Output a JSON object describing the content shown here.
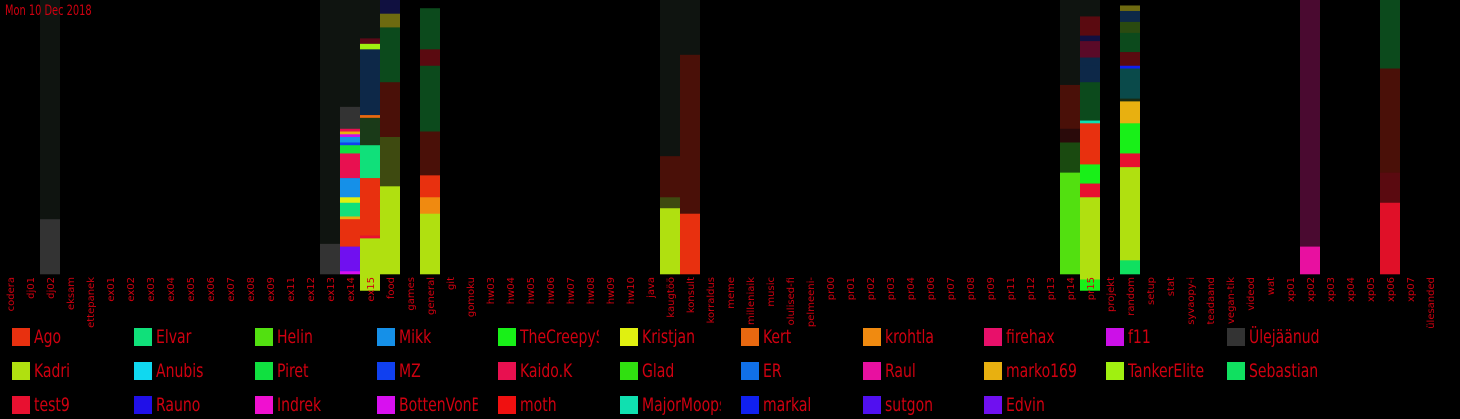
{
  "date": "Mon 10 Dec 2018",
  "chart_data": {
    "type": "bar",
    "stacked": true,
    "y_unit": "fraction of total messages",
    "ylim": [
      0,
      1
    ],
    "background": "#000000",
    "label_color": "#d00010",
    "categories": [
      "codera",
      "dj01",
      "dj02",
      "eksam",
      "ettepanek",
      "ex01",
      "ex02",
      "ex03",
      "ex04",
      "ex05",
      "ex06",
      "ex07",
      "ex08",
      "ex09",
      "ex11",
      "ex12",
      "ex13",
      "ex14",
      "ex15",
      "food",
      "games",
      "general",
      "git",
      "gomoku",
      "hw03",
      "hw04",
      "hw05",
      "hw06",
      "hw07",
      "hw08",
      "hw09",
      "hw10",
      "java",
      "kaugtöö",
      "konsult",
      "korraldus",
      "meme",
      "milleniaik",
      "music",
      "olulised-fi",
      "pelmeeni-",
      "pr00",
      "pr01",
      "pr02",
      "pr03",
      "pr04",
      "pr06",
      "pr07",
      "pr08",
      "pr09",
      "pr11",
      "pr12",
      "pr13",
      "pr14",
      "pr15",
      "projekt",
      "random",
      "setup",
      "stat",
      "syvaopy-i",
      "teadaand",
      "vegan-tik",
      "videod",
      "wat",
      "xp01",
      "xp02",
      "xp03",
      "xp04",
      "xp05",
      "xp06",
      "xp07",
      "ülesanded"
    ],
    "users": [
      {
        "name": "Ago",
        "color": "#e8300f"
      },
      {
        "name": "Elvar",
        "color": "#10e07a"
      },
      {
        "name": "Helin",
        "color": "#52e010"
      },
      {
        "name": "Mikk",
        "color": "#1590e8"
      },
      {
        "name": "TheCreepySh",
        "color": "#18f018"
      },
      {
        "name": "Kristjan",
        "color": "#e0f010"
      },
      {
        "name": "Kert",
        "color": "#e86810"
      },
      {
        "name": "krohtla",
        "color": "#f08a10"
      },
      {
        "name": "firehax",
        "color": "#e8106a"
      },
      {
        "name": "f11",
        "color": "#cc10e8"
      },
      {
        "name": "Ülejäänud",
        "color": "#333333"
      },
      {
        "name": "Kadri",
        "color": "#b0e010"
      },
      {
        "name": "Anubis",
        "color": "#10d8f0"
      },
      {
        "name": "Piret",
        "color": "#10e040"
      },
      {
        "name": "MZ",
        "color": "#1040f0"
      },
      {
        "name": "Kaido.K",
        "color": "#e81050"
      },
      {
        "name": "Glad",
        "color": "#30e010"
      },
      {
        "name": "ER",
        "color": "#1070e8"
      },
      {
        "name": "Raul",
        "color": "#e810a0"
      },
      {
        "name": "marko169",
        "color": "#e8b010"
      },
      {
        "name": "TankerElite",
        "color": "#a0f010"
      },
      {
        "name": "Sebastian",
        "color": "#10e060"
      },
      {
        "name": "test9",
        "color": "#e81030"
      },
      {
        "name": "Rauno",
        "color": "#2010e8"
      },
      {
        "name": "Indrek",
        "color": "#f010d0"
      },
      {
        "name": "BottenVonBot",
        "color": "#d810f0"
      },
      {
        "name": "moth",
        "color": "#f01010"
      },
      {
        "name": "MajorMoopsy",
        "color": "#10e0b0"
      },
      {
        "name": "markal",
        "color": "#1020f0"
      },
      {
        "name": "sutgon",
        "color": "#5010f0"
      },
      {
        "name": "Edvin",
        "color": "#7010f0"
      }
    ],
    "bars": [
      {
        "category": "dj02",
        "segments": [
          {
            "v": 0.8,
            "c": "#0f1410"
          },
          {
            "v": 0.2,
            "c": "#333333"
          }
        ]
      },
      {
        "category": "ex13",
        "segments": [
          {
            "v": 0.89,
            "c": "#0f1410"
          },
          {
            "v": 0.11,
            "c": "#333333"
          }
        ]
      },
      {
        "category": "ex14",
        "segments": [
          {
            "v": 0.39,
            "c": "#0f1410"
          },
          {
            "v": 0.08,
            "c": "#333333"
          },
          {
            "v": 0.01,
            "c": "#e81050"
          },
          {
            "v": 0.01,
            "c": "#e8b010"
          },
          {
            "v": 0.01,
            "c": "#cc10e8"
          },
          {
            "v": 0.02,
            "c": "#1590e8"
          },
          {
            "v": 0.01,
            "c": "#1040f0"
          },
          {
            "v": 0.03,
            "c": "#10e040"
          },
          {
            "v": 0.09,
            "c": "#e81050"
          },
          {
            "v": 0.07,
            "c": "#1590e8"
          },
          {
            "v": 0.02,
            "c": "#e0f010"
          },
          {
            "v": 0.05,
            "c": "#10e07a"
          },
          {
            "v": 0.01,
            "c": "#e8b010"
          },
          {
            "v": 0.1,
            "c": "#e8300f"
          },
          {
            "v": 0.09,
            "c": "#7010f0"
          },
          {
            "v": 0.01,
            "c": "#d810f0"
          }
        ]
      },
      {
        "category": "ex15",
        "segments": [
          {
            "v": 0.14,
            "c": "#0f1410"
          },
          {
            "v": 0.02,
            "c": "#5a0a18"
          },
          {
            "v": 0.02,
            "c": "#a0f010"
          },
          {
            "v": 0.24,
            "c": "#0d2848"
          },
          {
            "v": 0.01,
            "c": "#e86810"
          },
          {
            "v": 0.1,
            "c": "#1a3a18"
          },
          {
            "v": 0.12,
            "c": "#10e07a"
          },
          {
            "v": 0.21,
            "c": "#e8300f"
          },
          {
            "v": 0.01,
            "c": "#e81030"
          },
          {
            "v": 0.19,
            "c": "#b0e010"
          }
        ]
      },
      {
        "category": "food",
        "segments": [
          {
            "v": 0.05,
            "c": "#101040"
          },
          {
            "v": 0.05,
            "c": "#6e6a10"
          },
          {
            "v": 0.2,
            "c": "#0c4a1c"
          },
          {
            "v": 0.2,
            "c": "#4a1008"
          },
          {
            "v": 0.18,
            "c": "#3e4a10"
          },
          {
            "v": 0.32,
            "c": "#b0e010"
          }
        ]
      },
      {
        "category": "general",
        "segments": [
          {
            "v": 0.03,
            "c": "#000000"
          },
          {
            "v": 0.15,
            "c": "#0c4a1c"
          },
          {
            "v": 0.06,
            "c": "#5a0a10"
          },
          {
            "v": 0.24,
            "c": "#0c4a1c"
          },
          {
            "v": 0.16,
            "c": "#4a1008"
          },
          {
            "v": 0.08,
            "c": "#e8300f"
          },
          {
            "v": 0.06,
            "c": "#f08a10"
          },
          {
            "v": 0.22,
            "c": "#b0e010"
          }
        ]
      },
      {
        "category": "kaugtöö",
        "segments": [
          {
            "v": 0.57,
            "c": "#0f1410"
          },
          {
            "v": 0.15,
            "c": "#4a1008"
          },
          {
            "v": 0.04,
            "c": "#3e4a10"
          },
          {
            "v": 0.24,
            "c": "#b0e010"
          }
        ]
      },
      {
        "category": "konsult",
        "segments": [
          {
            "v": 0.2,
            "c": "#0f1410"
          },
          {
            "v": 0.58,
            "c": "#4a1008"
          },
          {
            "v": 0.22,
            "c": "#e8300f"
          }
        ]
      },
      {
        "category": "pr14",
        "segments": [
          {
            "v": 0.31,
            "c": "#0f1410"
          },
          {
            "v": 0.16,
            "c": "#4a1008"
          },
          {
            "v": 0.05,
            "c": "#2a0a0a"
          },
          {
            "v": 0.11,
            "c": "#1a4a10"
          },
          {
            "v": 0.37,
            "c": "#52e010"
          }
        ]
      },
      {
        "category": "pr15",
        "segments": [
          {
            "v": 0.06,
            "c": "#0f1410"
          },
          {
            "v": 0.07,
            "c": "#5a0a10"
          },
          {
            "v": 0.02,
            "c": "#101040"
          },
          {
            "v": 0.06,
            "c": "#5a0a28"
          },
          {
            "v": 0.03,
            "c": "#0d2848"
          },
          {
            "v": 0.06,
            "c": "#0d2848"
          },
          {
            "v": 0.14,
            "c": "#0c4a1c"
          },
          {
            "v": 0.01,
            "c": "#10e0b0"
          },
          {
            "v": 0.15,
            "c": "#e8300f"
          },
          {
            "v": 0.07,
            "c": "#18f018"
          },
          {
            "v": 0.05,
            "c": "#e81030"
          },
          {
            "v": 0.3,
            "c": "#b0e010"
          },
          {
            "v": 0.04,
            "c": "#18f018"
          }
        ]
      },
      {
        "category": "random",
        "segments": [
          {
            "v": 0.02,
            "c": "#000000"
          },
          {
            "v": 0.02,
            "c": "#6e6a10"
          },
          {
            "v": 0.04,
            "c": "#0d2848"
          },
          {
            "v": 0.04,
            "c": "#2a4a10"
          },
          {
            "v": 0.07,
            "c": "#0c4a1c"
          },
          {
            "v": 0.05,
            "c": "#5a0a10"
          },
          {
            "v": 0.01,
            "c": "#1020f0"
          },
          {
            "v": 0.11,
            "c": "#0a4a4a"
          },
          {
            "v": 0.01,
            "c": "#1a2a10"
          },
          {
            "v": 0.08,
            "c": "#e8b010"
          },
          {
            "v": 0.11,
            "c": "#18f018"
          },
          {
            "v": 0.05,
            "c": "#e81030"
          },
          {
            "v": 0.34,
            "c": "#b0e010"
          },
          {
            "v": 0.05,
            "c": "#10e060"
          }
        ]
      },
      {
        "category": "xp02",
        "segments": [
          {
            "v": 0.9,
            "c": "#4a0a30"
          },
          {
            "v": 0.1,
            "c": "#e810a0"
          }
        ]
      },
      {
        "category": "xp06",
        "segments": [
          {
            "v": 0.25,
            "c": "#0c4a1c"
          },
          {
            "v": 0.38,
            "c": "#4a1008"
          },
          {
            "v": 0.11,
            "c": "#5a0a10"
          },
          {
            "v": 0.26,
            "c": "#e01028"
          }
        ]
      }
    ]
  }
}
